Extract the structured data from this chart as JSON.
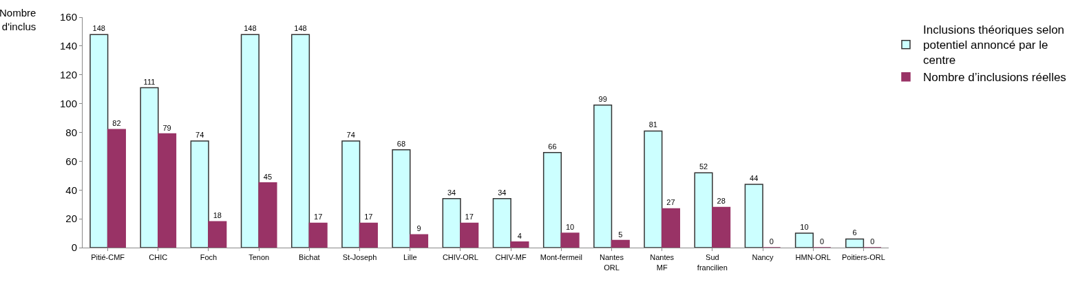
{
  "chart_data": {
    "type": "bar",
    "ylabel": "Nombre d'inclus",
    "categories": [
      "Pitié-CMF",
      "CHIC",
      "Foch",
      "Tenon",
      "Bichat",
      "St-Joseph",
      "Lille",
      "CHIV-ORL",
      "CHIV-MF",
      "Mont-fermeil",
      "Nantes ORL",
      "Nantes MF",
      "Sud francilien",
      "Nancy",
      "HMN-ORL",
      "Poitiers-ORL"
    ],
    "series": [
      {
        "name": "Inclusions théoriques selon potentiel annoncé par le centre",
        "color": "#ccffff",
        "values": [
          148,
          111,
          74,
          148,
          148,
          74,
          68,
          34,
          34,
          66,
          99,
          81,
          52,
          44,
          10,
          6
        ]
      },
      {
        "name": "Nombre d’inclusions réelles",
        "color": "#993366",
        "values": [
          82,
          79,
          18,
          45,
          17,
          17,
          9,
          17,
          4,
          10,
          5,
          27,
          28,
          0,
          0,
          0
        ]
      }
    ],
    "ylim": [
      0,
      160
    ],
    "yticks": [
      0,
      20,
      40,
      60,
      80,
      100,
      120,
      140,
      160
    ],
    "grid": false,
    "legend": "top right",
    "data_labels": true
  }
}
